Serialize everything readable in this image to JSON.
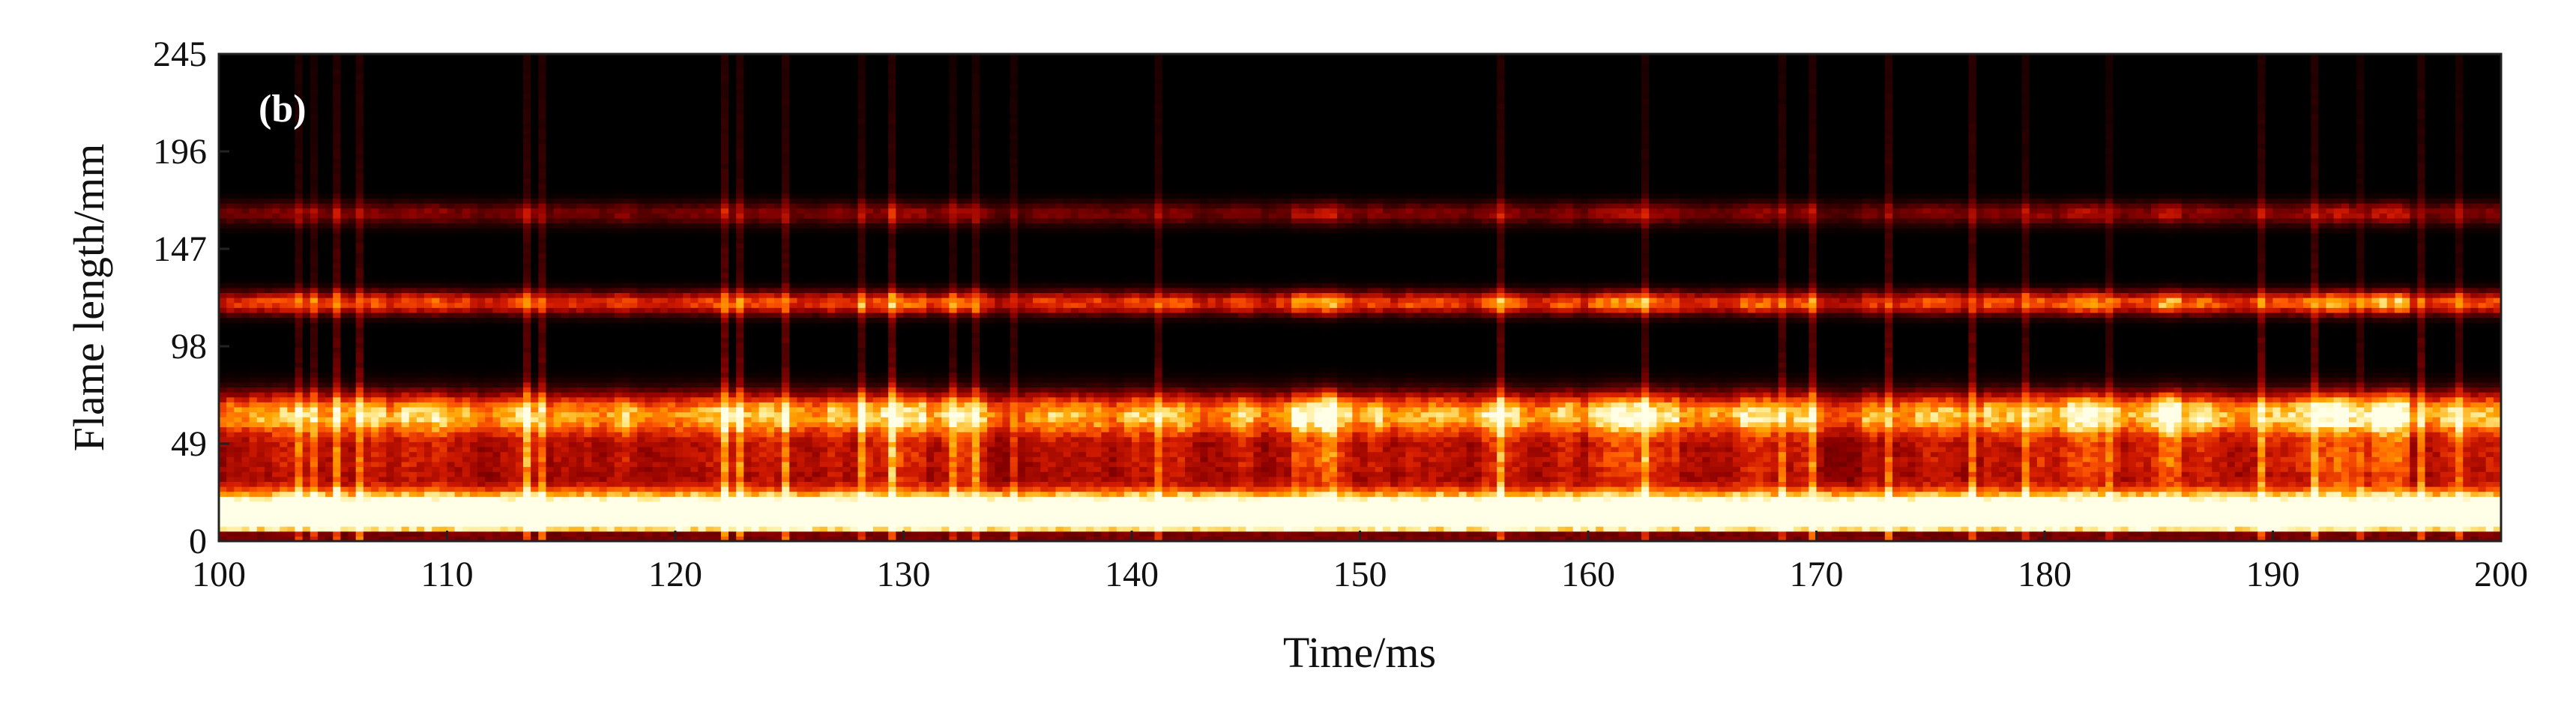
{
  "chart_data": {
    "type": "heatmap",
    "panel_label": "(b)",
    "xlabel": "Time/ms",
    "ylabel": "Flame length/mm",
    "xlim": [
      100,
      200
    ],
    "ylim": [
      0,
      245
    ],
    "x_ticks": [
      100,
      110,
      120,
      130,
      140,
      150,
      160,
      170,
      180,
      190,
      200
    ],
    "y_ticks": [
      0,
      49,
      98,
      147,
      196,
      245
    ],
    "colormap": [
      "#000000",
      "#3a0000",
      "#8b0000",
      "#d01a00",
      "#ff5a00",
      "#ffa500",
      "#ffe680",
      "#ffffe8"
    ],
    "bands_mm": [
      {
        "center": 14,
        "width": 10,
        "intensity": 1.0
      },
      {
        "center": 64,
        "width": 11,
        "intensity": 0.85
      },
      {
        "center": 40,
        "width": 16,
        "intensity": 0.45
      },
      {
        "center": 120,
        "width": 6,
        "intensity": 0.6
      },
      {
        "center": 165,
        "width": 6,
        "intensity": 0.3
      }
    ],
    "bright_intervals_ms": [
      [
        128,
        131
      ],
      [
        147,
        149
      ],
      [
        160,
        164
      ],
      [
        179,
        186
      ],
      [
        192,
        196
      ]
    ]
  }
}
